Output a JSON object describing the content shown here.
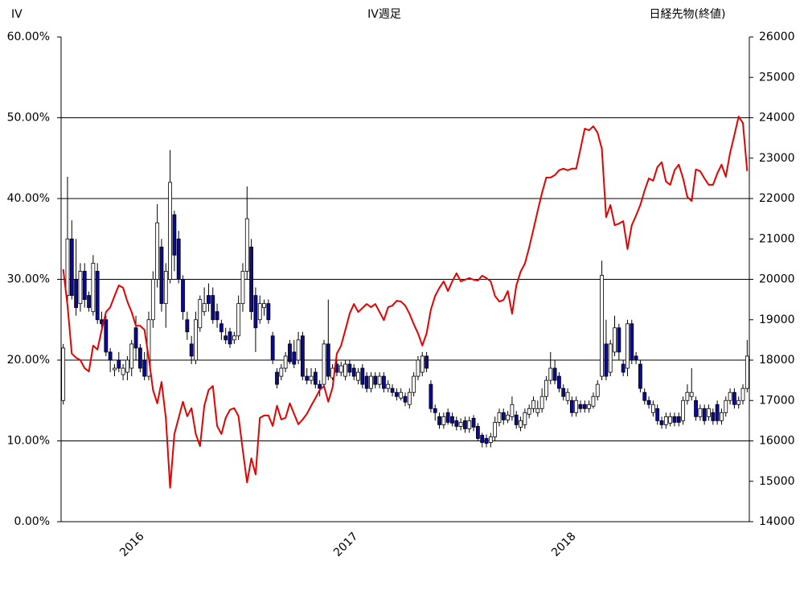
{
  "chart_data": {
    "type": "candlestick",
    "title": "IV週足",
    "y_label": "IV",
    "y2_label": "日経先物(終値)",
    "categories": [
      null,
      null,
      null,
      null,
      null,
      null,
      null,
      null,
      null,
      null,
      null,
      null,
      null,
      null,
      null,
      null,
      null,
      "2016",
      null,
      null,
      null,
      null,
      null,
      null,
      null,
      null,
      null,
      null,
      null,
      null,
      null,
      null,
      null,
      null,
      null,
      null,
      null,
      null,
      null,
      null,
      null,
      null,
      null,
      null,
      null,
      null,
      null,
      null,
      null,
      null,
      null,
      null,
      null,
      null,
      null,
      null,
      null,
      null,
      null,
      null,
      null,
      null,
      null,
      null,
      null,
      null,
      null,
      "2017",
      null,
      null,
      null,
      null,
      null,
      null,
      null,
      null,
      null,
      null,
      null,
      null,
      null,
      null,
      null,
      null,
      null,
      null,
      null,
      null,
      null,
      null,
      null,
      null,
      null,
      null,
      null,
      null,
      null,
      null,
      null,
      null,
      null,
      null,
      null,
      null,
      null,
      null,
      null,
      null,
      null,
      null,
      null,
      null,
      null,
      null,
      null,
      null,
      null,
      null,
      "2018",
      null,
      null,
      null,
      null,
      null,
      null,
      null,
      null,
      null,
      null,
      null,
      null,
      null,
      null,
      null,
      null,
      null,
      null,
      null,
      null,
      null,
      null,
      null,
      null,
      null,
      null,
      null,
      null,
      null,
      null,
      null,
      null,
      null,
      null,
      null,
      null,
      null,
      null,
      null,
      null,
      null,
      null
    ],
    "series": [
      {
        "type": "candlestick",
        "up_color": "#ffffff",
        "down_color": "#0a0a96",
        "edge_color": "#000000",
        "open": [
          15,
          28,
          35,
          30,
          27,
          31,
          28,
          26,
          31,
          25,
          25,
          21,
          18.8,
          20,
          18.2,
          18.5,
          19,
          24,
          21.5,
          20,
          18,
          25,
          30,
          34,
          27,
          30,
          38,
          35,
          30,
          25,
          22,
          20,
          24,
          26,
          28,
          28,
          26,
          24.5,
          23,
          23.5,
          22.5,
          23,
          27,
          31,
          34,
          28,
          25,
          26.5,
          27,
          23,
          18.5,
          18,
          19,
          22,
          21,
          20,
          23,
          18,
          17.5,
          18.5,
          17,
          17,
          22,
          17.8,
          19.5,
          18.5,
          18,
          19.5,
          19,
          17.5,
          19,
          18,
          16.5,
          18,
          17,
          18,
          16.5,
          16.5,
          16,
          15.3,
          15.5,
          14.5,
          16,
          18,
          18.5,
          20.5,
          17,
          14,
          13,
          12,
          13.5,
          13,
          12.5,
          11.8,
          12.5,
          11.5,
          12.8,
          11.8,
          10.7,
          10.3,
          9.8,
          10.5,
          12.3,
          13.5,
          12.6,
          13,
          13.2,
          11.7,
          12,
          13.3,
          14,
          13.5,
          14,
          15.5,
          17.5,
          19,
          18,
          16.5,
          15,
          15,
          13.5,
          14.5,
          14.5,
          14,
          14.3,
          15.5,
          18,
          22,
          18.5,
          21,
          24,
          19.5,
          19,
          24.5,
          20.5,
          19.5,
          16,
          15,
          13.5,
          14,
          12.5,
          12,
          12.2,
          13,
          13,
          12.5,
          15,
          15.5,
          15,
          13,
          14,
          13,
          13.5,
          14.5,
          12.5,
          13.5,
          15,
          16,
          14.5,
          15,
          16.5
        ],
        "high": [
          22,
          42.7,
          37.3,
          35,
          32,
          32,
          28.5,
          33,
          32,
          26,
          25.5,
          21.5,
          19.5,
          21,
          19.5,
          20.5,
          22.5,
          25.5,
          22,
          21,
          26,
          31,
          39.3,
          35,
          32,
          46,
          38.5,
          36,
          30.5,
          26,
          23,
          26,
          28,
          29,
          29.5,
          29,
          27,
          25,
          24,
          24,
          23.5,
          28,
          32,
          41.5,
          35,
          29,
          28,
          27.5,
          27.5,
          23.5,
          19,
          19.5,
          21,
          22.5,
          22.5,
          23.5,
          23.5,
          19,
          19,
          19,
          17.5,
          22.5,
          27.5,
          19.5,
          20,
          19.8,
          20,
          20,
          19.5,
          19,
          19.5,
          18.5,
          18.5,
          18.5,
          18.5,
          18.5,
          17.5,
          17,
          16.5,
          16.5,
          16,
          16.5,
          18.5,
          20.5,
          21,
          21,
          17.5,
          14.5,
          13.5,
          13.5,
          14,
          13.5,
          13,
          12.8,
          13,
          13,
          13.2,
          12.2,
          11,
          10.8,
          11,
          13,
          14,
          14,
          13.7,
          15.5,
          13.7,
          13,
          14,
          14.5,
          15.5,
          15,
          16.5,
          18,
          21,
          20,
          18.5,
          17,
          16.5,
          15.5,
          15.5,
          15,
          15,
          15,
          16,
          17.5,
          32.3,
          25,
          22.5,
          25.5,
          24.5,
          20,
          25,
          25,
          21,
          20,
          16.5,
          15.5,
          15,
          14.5,
          13,
          13.5,
          13.5,
          13.5,
          13.5,
          15.5,
          17,
          19,
          15.5,
          14.5,
          14.5,
          14.5,
          14,
          15,
          14,
          15.5,
          16.5,
          16.5,
          15.5,
          17,
          22.5
        ],
        "low": [
          14.5,
          27,
          27.5,
          25.5,
          26,
          26.5,
          26,
          25.5,
          24.5,
          23.5,
          20.5,
          18.5,
          18,
          18.5,
          17.5,
          17.5,
          18,
          20,
          18.5,
          17.5,
          17.5,
          24,
          29,
          26,
          24,
          29.5,
          31,
          29.5,
          25,
          22.5,
          19.5,
          19.5,
          23.5,
          25.5,
          26,
          24.5,
          24,
          22.5,
          22,
          21.5,
          22,
          22.5,
          26,
          30,
          25,
          21,
          24.5,
          25.5,
          24.5,
          19.5,
          16.5,
          17.5,
          18.5,
          19.5,
          19,
          19.5,
          17.5,
          17,
          17,
          16.5,
          15.5,
          16.5,
          17.5,
          17.5,
          18,
          18,
          17.5,
          18,
          17.5,
          17,
          16.5,
          16,
          16,
          16.5,
          16.5,
          16,
          16,
          15.5,
          15,
          15,
          14.3,
          14,
          15.5,
          17.5,
          18,
          18.5,
          13.5,
          12.5,
          11.5,
          11.5,
          12,
          11.8,
          11.3,
          11.3,
          11,
          11,
          11.2,
          10,
          9.2,
          9.2,
          9.2,
          10,
          11.8,
          12,
          12.2,
          12.5,
          11.5,
          11.2,
          11.5,
          12.8,
          13.5,
          13,
          13.5,
          15,
          17,
          17,
          16,
          15,
          14.5,
          13,
          13,
          13.5,
          13.5,
          13.5,
          14,
          15,
          17.5,
          17.5,
          18,
          20.5,
          20,
          18,
          18,
          19.5,
          19.5,
          16,
          14.5,
          14,
          13,
          12,
          11.5,
          11.5,
          11.8,
          11.8,
          11.8,
          12,
          14.5,
          15,
          12.5,
          12.5,
          12,
          12.5,
          12,
          12,
          12,
          13,
          14.5,
          14,
          14,
          14.5,
          16
        ],
        "close": [
          21.5,
          35,
          28,
          26.5,
          31,
          27.5,
          26.5,
          32,
          25,
          24.5,
          21,
          20,
          19,
          19,
          19,
          20,
          22,
          21.5,
          19,
          18,
          25,
          30,
          37,
          27,
          31,
          42,
          33,
          30,
          26,
          23.5,
          20.5,
          25,
          27.5,
          27,
          27,
          25,
          25,
          23.5,
          22.5,
          22,
          23,
          27,
          31,
          37.5,
          26,
          24,
          27,
          27,
          25,
          20,
          17,
          19,
          20.5,
          19.8,
          19.5,
          22.5,
          18,
          17.5,
          18,
          17,
          16.5,
          22,
          18,
          19,
          18.5,
          19.3,
          19.5,
          18.5,
          18,
          18.5,
          17,
          16.5,
          18,
          17,
          18,
          16.5,
          17,
          16,
          15.5,
          16,
          14.8,
          16,
          18,
          20,
          20.5,
          19,
          14,
          13.5,
          12,
          13,
          12.3,
          12.2,
          11.8,
          12.3,
          11.5,
          12.5,
          11.7,
          10.3,
          9.8,
          9.7,
          10.5,
          12.3,
          13.5,
          12.6,
          13.2,
          14.5,
          12,
          12.5,
          13.5,
          14,
          15,
          14,
          15.5,
          17.5,
          19,
          17.5,
          16.5,
          15.5,
          16,
          13.5,
          15,
          14,
          14,
          14.5,
          15.5,
          17,
          30.5,
          18,
          22,
          24,
          21,
          18.5,
          24.5,
          20,
          20,
          16.5,
          15,
          14.5,
          14.5,
          12.5,
          12,
          13,
          13,
          12.3,
          12.3,
          15,
          16,
          16,
          13,
          14,
          12.5,
          14,
          12.5,
          12.5,
          13.5,
          15,
          16,
          14.5,
          15,
          16.5,
          20.5
        ]
      },
      {
        "type": "line",
        "axis": "y2",
        "color": "#e60000",
        "values": [
          20250,
          19350,
          18160,
          18060,
          18000,
          17800,
          17720,
          18360,
          18260,
          18750,
          19190,
          19310,
          19590,
          19850,
          19790,
          19450,
          19190,
          18850,
          18850,
          18750,
          18060,
          17260,
          16930,
          17460,
          16570,
          14840,
          16170,
          16570,
          16970,
          16610,
          16810,
          16170,
          15870,
          16870,
          17260,
          17360,
          16370,
          16170,
          16570,
          16770,
          16810,
          16610,
          15770,
          14970,
          15570,
          15170,
          16570,
          16630,
          16630,
          16370,
          16870,
          16530,
          16570,
          16930,
          16670,
          16410,
          16530,
          16670,
          16870,
          17060,
          17260,
          17360,
          16970,
          17320,
          18160,
          18360,
          18750,
          19150,
          19390,
          19190,
          19290,
          19390,
          19310,
          19390,
          19190,
          18990,
          19310,
          19350,
          19470,
          19450,
          19350,
          19150,
          18890,
          18660,
          18360,
          18660,
          19250,
          19590,
          19790,
          19950,
          19710,
          19950,
          20150,
          19950,
          19990,
          20030,
          19990,
          19970,
          20090,
          20030,
          19950,
          19590,
          19450,
          19490,
          19710,
          19150,
          19850,
          20190,
          20390,
          20790,
          21240,
          21700,
          22140,
          22520,
          22520,
          22580,
          22700,
          22740,
          22700,
          22740,
          22740,
          23230,
          23730,
          23690,
          23790,
          23630,
          23230,
          21540,
          21840,
          21340,
          21380,
          21440,
          20750,
          21340,
          21580,
          21840,
          22200,
          22500,
          22440,
          22780,
          22900,
          22420,
          22340,
          22700,
          22840,
          22500,
          22040,
          21940,
          22720,
          22680,
          22500,
          22340,
          22340,
          22620,
          22840,
          22540,
          23130,
          23570,
          24030,
          23870,
          22680
        ]
      }
    ],
    "ylim": [
      0,
      60
    ],
    "yticks": [
      {
        "value": 0,
        "label": "0.00%"
      },
      {
        "value": 10,
        "label": "10.00%"
      },
      {
        "value": 20,
        "label": "20.00%"
      },
      {
        "value": 30,
        "label": "30.00%"
      },
      {
        "value": 40,
        "label": "40.00%"
      },
      {
        "value": 50,
        "label": "50.00%"
      },
      {
        "value": 60,
        "label": "60.00%"
      }
    ],
    "y2lim": [
      14000,
      26000
    ],
    "y2ticks": [
      14000,
      15000,
      16000,
      17000,
      18000,
      19000,
      20000,
      21000,
      22000,
      23000,
      24000,
      25000,
      26000
    ],
    "grid": true
  }
}
